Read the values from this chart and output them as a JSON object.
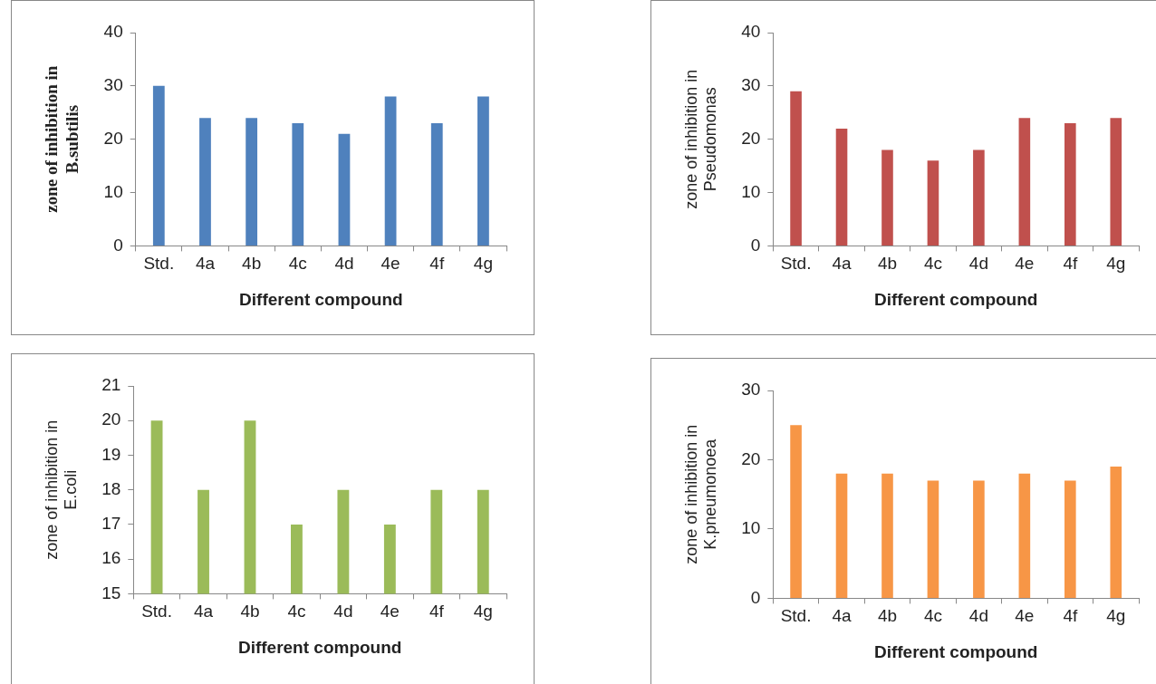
{
  "chart_data": [
    {
      "type": "bar",
      "xlabel": "Different compound",
      "ylabel": "zone of inhibition in B.subtilis",
      "categories": [
        "Std.",
        "4a",
        "4b",
        "4c",
        "4d",
        "4e",
        "4f",
        "4g"
      ],
      "values": [
        30,
        24,
        24,
        23,
        21,
        28,
        23,
        28
      ],
      "color": "#4f81bd",
      "ylim": [
        0,
        40
      ],
      "yticks": [
        0,
        10,
        20,
        30,
        40
      ],
      "grid": false,
      "legend": false
    },
    {
      "type": "bar",
      "xlabel": "Different compound",
      "ylabel": "zone of inhibition in Pseudomonas",
      "categories": [
        "Std.",
        "4a",
        "4b",
        "4c",
        "4d",
        "4e",
        "4f",
        "4g"
      ],
      "values": [
        29,
        22,
        18,
        16,
        18,
        24,
        23,
        24
      ],
      "color": "#c0504d",
      "ylim": [
        0,
        40
      ],
      "yticks": [
        0,
        10,
        20,
        30,
        40
      ],
      "grid": false,
      "legend": false
    },
    {
      "type": "bar",
      "xlabel": "Different compound",
      "ylabel": "zone of inhibition in E.coli",
      "categories": [
        "Std.",
        "4a",
        "4b",
        "4c",
        "4d",
        "4e",
        "4f",
        "4g"
      ],
      "values": [
        20,
        18,
        20,
        17,
        18,
        17,
        18,
        18
      ],
      "color": "#9bbb59",
      "ylim": [
        15,
        21
      ],
      "yticks": [
        15,
        16,
        17,
        18,
        19,
        20,
        21
      ],
      "grid": false,
      "legend": false
    },
    {
      "type": "bar",
      "xlabel": "Different compound",
      "ylabel": "zone of inhibition in K.pneumonoea",
      "categories": [
        "Std.",
        "4a",
        "4b",
        "4c",
        "4d",
        "4e",
        "4f",
        "4g"
      ],
      "values": [
        25,
        18,
        18,
        17,
        17,
        18,
        17,
        19
      ],
      "color": "#f79646",
      "ylim": [
        0,
        30
      ],
      "yticks": [
        0,
        10,
        20,
        30
      ],
      "grid": false,
      "legend": false
    }
  ]
}
